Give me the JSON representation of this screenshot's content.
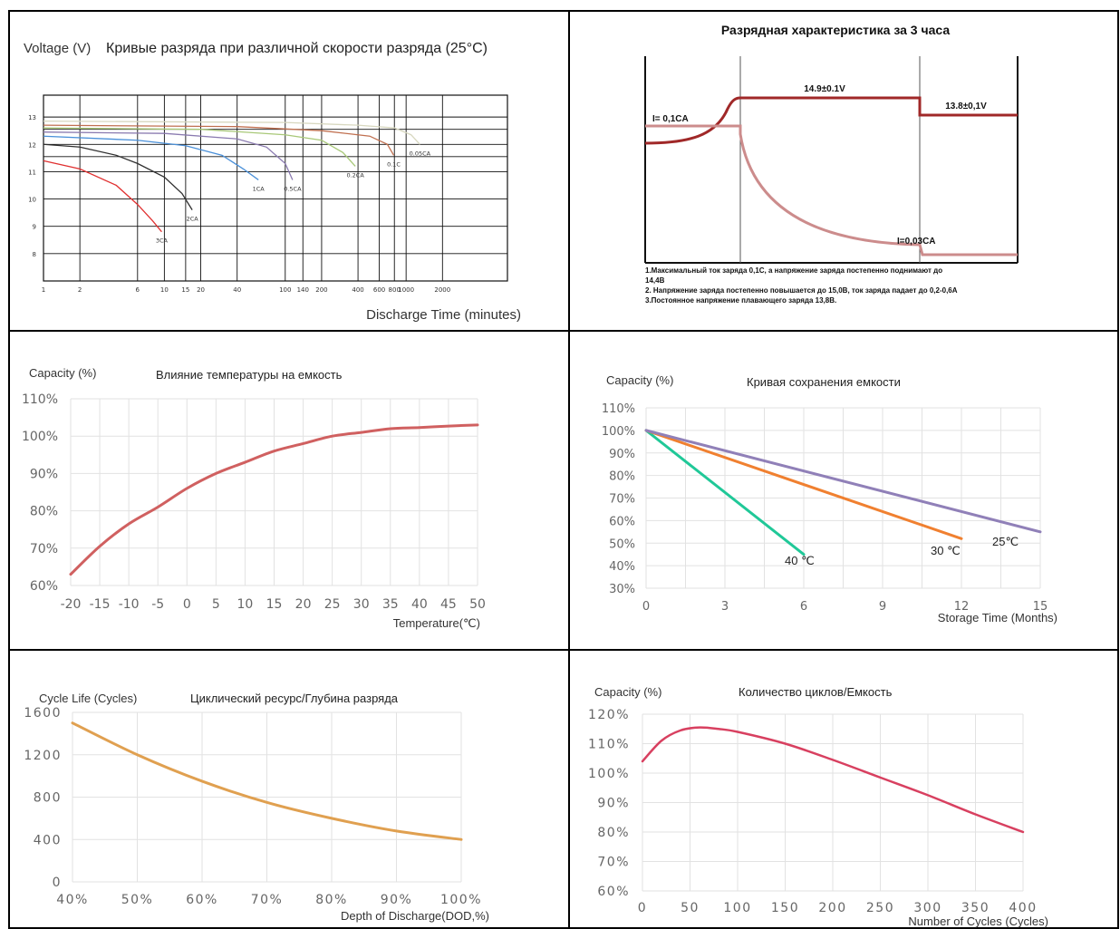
{
  "chart_data": [
    {
      "type": "line",
      "title": "Кривые разряда при различной скорости разряда (25°C)",
      "ylabel": "Voltage (V)",
      "xlabel": "Discharge Time (minutes)",
      "x_scale": "log",
      "x_ticks": [
        "1",
        "2",
        "6",
        "10",
        "15",
        "20",
        "40",
        "100",
        "140",
        "200",
        "400",
        "600",
        "800",
        "1000",
        "2000"
      ],
      "y_ticks": [
        "8",
        "9",
        "10",
        "11",
        "12",
        "13"
      ],
      "ylim": [
        7,
        13.8
      ],
      "grid": true,
      "series": [
        {
          "name": "3CA",
          "color": "#e03030",
          "x": [
            1,
            2,
            4,
            6,
            8,
            9.5
          ],
          "y": [
            11.4,
            11.1,
            10.5,
            9.8,
            9.2,
            8.8
          ]
        },
        {
          "name": "2CA",
          "color": "#303030",
          "x": [
            1,
            2,
            4,
            6,
            10,
            14,
            17
          ],
          "y": [
            12.0,
            11.9,
            11.6,
            11.3,
            10.8,
            10.2,
            9.6
          ]
        },
        {
          "name": "1CA",
          "color": "#4a90d9",
          "x": [
            1,
            6,
            15,
            30,
            45,
            60
          ],
          "y": [
            12.3,
            12.15,
            11.95,
            11.6,
            11.1,
            10.7
          ]
        },
        {
          "name": "0.5CA",
          "color": "#8a7ab0",
          "x": [
            1,
            10,
            40,
            70,
            100,
            115
          ],
          "y": [
            12.45,
            12.4,
            12.2,
            11.9,
            11.3,
            10.7
          ]
        },
        {
          "name": "0.2CA",
          "color": "#a8c878",
          "x": [
            1,
            20,
            100,
            200,
            300,
            380
          ],
          "y": [
            12.6,
            12.55,
            12.35,
            12.15,
            11.7,
            11.2
          ]
        },
        {
          "name": "0.1C",
          "color": "#c07050",
          "x": [
            1,
            40,
            200,
            500,
            700,
            790
          ],
          "y": [
            12.7,
            12.65,
            12.5,
            12.3,
            12.0,
            11.6
          ]
        },
        {
          "name": "0.05CA",
          "color": "#d8d8c0",
          "x": [
            1,
            100,
            400,
            800,
            1100,
            1300
          ],
          "y": [
            12.85,
            12.8,
            12.7,
            12.6,
            12.35,
            12.0
          ]
        }
      ]
    },
    {
      "type": "line",
      "title": "Разрядная характеристика за 3 часа",
      "labels": [
        "I= 0,1CA",
        "14.9±0.1V",
        "13.8±0,1V",
        "I=0,03CA"
      ],
      "notes": [
        "1.Максимальный  ток заряда 0,1С, а напряжение заряда постепенно поднимают до",
        "14,4В",
        "2. Напряжение заряда постепенно повышается до 15,0В, ток заряда падает до 0,2-0,6А",
        "3.Постоянное напряжение плавающего заряда 13,8В."
      ]
    },
    {
      "type": "line",
      "title": "Влияние температуры на емкость",
      "ylabel": "Capacity (%)",
      "xlabel": "Temperature(℃)",
      "xlim": [
        -20,
        50
      ],
      "ylim": [
        60,
        110
      ],
      "x_ticks": [
        "-20",
        "-15",
        "-10",
        "-5",
        "0",
        "5",
        "10",
        "15",
        "20",
        "25",
        "30",
        "35",
        "40",
        "45",
        "50"
      ],
      "y_ticks": [
        "60%",
        "70%",
        "80%",
        "90%",
        "100%",
        "110%"
      ],
      "grid": true,
      "series": [
        {
          "color": "#d06060",
          "x": [
            -20,
            -15,
            -10,
            -5,
            0,
            5,
            10,
            15,
            20,
            25,
            30,
            35,
            40,
            45,
            50
          ],
          "y": [
            63,
            70.5,
            76.5,
            81,
            86,
            90,
            93,
            96,
            98,
            100,
            101,
            102,
            102.3,
            102.7,
            103
          ]
        }
      ]
    },
    {
      "type": "line",
      "title": "Кривая сохранения емкости",
      "ylabel": "Capacity (%)",
      "xlabel": "Storage Time (Months)",
      "xlim": [
        0,
        15
      ],
      "ylim": [
        30,
        110
      ],
      "x_ticks": [
        "0",
        "3",
        "6",
        "9",
        "12",
        "15"
      ],
      "y_ticks": [
        "30%",
        "40%",
        "50%",
        "60%",
        "70%",
        "80%",
        "90%",
        "100%",
        "110%"
      ],
      "grid": true,
      "series": [
        {
          "name": "40 ℃",
          "color": "#20c898",
          "x": [
            0,
            6
          ],
          "y": [
            100,
            45
          ]
        },
        {
          "name": "30 ℃",
          "color": "#f08030",
          "x": [
            0,
            12
          ],
          "y": [
            100,
            52
          ]
        },
        {
          "name": "25℃",
          "color": "#9080b8",
          "x": [
            0,
            15
          ],
          "y": [
            100,
            55
          ]
        }
      ]
    },
    {
      "type": "line",
      "title": "Циклический ресурс/Глубина разряда",
      "ylabel": "Cycle Life (Cycles)",
      "xlabel": "Depth of Discharge(DOD,%)",
      "xlim": [
        40,
        100
      ],
      "ylim": [
        0,
        1600
      ],
      "x_ticks": [
        "40%",
        "50%",
        "60%",
        "70%",
        "80%",
        "90%",
        "100%"
      ],
      "y_ticks": [
        "0",
        "400",
        "800",
        "1200",
        "1600"
      ],
      "grid": true,
      "series": [
        {
          "color": "#e0a050",
          "x": [
            40,
            50,
            60,
            70,
            80,
            90,
            100
          ],
          "y": [
            1500,
            1200,
            950,
            750,
            600,
            480,
            400
          ]
        }
      ]
    },
    {
      "type": "line",
      "title": "Количество циклов/Емкость",
      "ylabel": "Capacity (%)",
      "xlabel": "Number of Cycles (Cycles)",
      "xlim": [
        0,
        400
      ],
      "ylim": [
        60,
        120
      ],
      "x_ticks": [
        "0",
        "50",
        "100",
        "150",
        "200",
        "250",
        "300",
        "350",
        "400"
      ],
      "y_ticks": [
        "60%",
        "70%",
        "80%",
        "90%",
        "100%",
        "110%",
        "120%"
      ],
      "grid": true,
      "series": [
        {
          "color": "#d84060",
          "x": [
            0,
            20,
            40,
            60,
            80,
            100,
            150,
            200,
            250,
            300,
            350,
            400
          ],
          "y": [
            104,
            111,
            114.5,
            115.5,
            115,
            114,
            110,
            104.5,
            98.5,
            92.5,
            86,
            80
          ]
        }
      ]
    }
  ]
}
